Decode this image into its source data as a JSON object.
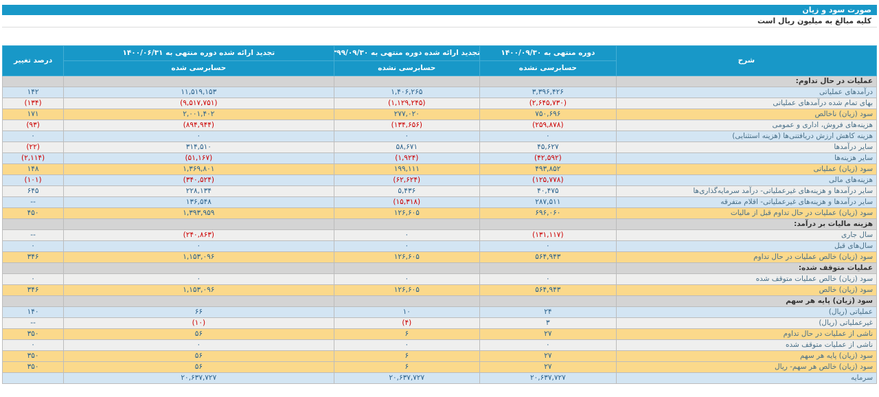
{
  "page": {
    "title": "صورت سود و زیان",
    "subtitle": "کلیه مبالغ به میلیون ریال است"
  },
  "colors": {
    "accent_teal": "#1898c8",
    "row_blue": "#d3e5f3",
    "row_white": "#efefee",
    "row_yellow": "#fbd98b",
    "row_section_grey": "#d4d4d4",
    "negative_red": "#cc0000",
    "value_blue": "#2a618c"
  },
  "table": {
    "headers": {
      "description": "شرح",
      "col_current_line1": "دوره منتهی به ۱۴۰۰/۰۹/۳۰",
      "col_current_line2": "حسابرسی نشده",
      "col_prior_line1": "تجدید ارائه شده دوره منتهی به ۱۳۹۹/۰۹/۳۰",
      "col_prior_line2": "حسابرسی نشده",
      "col_annual_line1": "تجدید ارائه شده دوره منتهی به ۱۴۰۰/۰۶/۳۱",
      "col_annual_line2": "حسابرسی شده",
      "pct_change": "درصد تغییر"
    },
    "rows": [
      {
        "type": "section",
        "bg": "grey",
        "label": "عملیات در حال تداوم:",
        "current": "",
        "prior": "",
        "annual": "",
        "pct": ""
      },
      {
        "type": "data",
        "bg": "blue",
        "label": "درآمدهای عملیاتی",
        "current": "۳,۳۹۶,۴۲۶",
        "prior": "۱,۴۰۶,۲۶۵",
        "annual": "۱۱,۵۱۹,۱۵۳",
        "pct": "۱۴۲"
      },
      {
        "type": "data",
        "bg": "white",
        "label": "بهای تمام شده درآمدهای عملیاتی",
        "current": "(۲,۶۴۵,۷۳۰)",
        "prior": "(۱,۱۲۹,۲۴۵)",
        "annual": "(۹,۵۱۷,۷۵۱)",
        "pct": "(۱۳۴)"
      },
      {
        "type": "data",
        "bg": "yellow",
        "label": "سود (زیان) ناخالص",
        "current": "۷۵۰,۶۹۶",
        "prior": "۲۷۷,۰۲۰",
        "annual": "۲,۰۰۱,۴۰۲",
        "pct": "۱۷۱"
      },
      {
        "type": "data",
        "bg": "white",
        "label": "هزینه‌های فروش، اداری و عمومی",
        "current": "(۲۵۹,۸۷۸)",
        "prior": "(۱۳۴,۶۵۶)",
        "annual": "(۸۹۴,۹۴۴)",
        "pct": "(۹۳)"
      },
      {
        "type": "data",
        "bg": "blue",
        "label": "هزینه کاهش ارزش دریافتنی‌ها (هزینه استثنایی)",
        "current": "۰",
        "prior": "۰",
        "annual": "۰",
        "pct": "۰"
      },
      {
        "type": "data",
        "bg": "white",
        "label": "سایر درآمدها",
        "current": "۴۵,۶۲۷",
        "prior": "۵۸,۶۷۱",
        "annual": "۳۱۴,۵۱۰",
        "pct": "(۲۲)"
      },
      {
        "type": "data",
        "bg": "blue",
        "label": "سایر هزینه‌ها",
        "current": "(۴۲,۵۹۲)",
        "prior": "(۱,۹۲۴)",
        "annual": "(۵۱,۱۶۷)",
        "pct": "(۲,۱۱۴)"
      },
      {
        "type": "data",
        "bg": "yellow",
        "label": "سود (زیان) عملیاتی",
        "current": "۴۹۳,۸۵۲",
        "prior": "۱۹۹,۱۱۱",
        "annual": "۱,۳۶۹,۸۰۱",
        "pct": "۱۴۸"
      },
      {
        "type": "data",
        "bg": "blue",
        "label": "هزینه‌های مالی",
        "current": "(۱۲۵,۷۷۸)",
        "prior": "(۶۲,۶۲۴)",
        "annual": "(۳۴۰,۵۲۴)",
        "pct": "(۱۰۱)"
      },
      {
        "type": "data",
        "bg": "white",
        "label": "سایر درآمدها و هزینه‌های غیرعملیاتی- درآمد سرمایه‌گذاری‌ها",
        "current": "۴۰,۴۷۵",
        "prior": "۵,۴۳۶",
        "annual": "۲۲۸,۱۳۴",
        "pct": "۶۴۵"
      },
      {
        "type": "data",
        "bg": "blue",
        "label": "سایر درآمدها و هزینه‌های غیرعملیاتی- اقلام متفرقه",
        "current": "۲۸۷,۵۱۱",
        "prior": "(۱۵,۳۱۸)",
        "annual": "۱۳۶,۵۴۸",
        "pct": "--"
      },
      {
        "type": "data",
        "bg": "yellow",
        "label": "سود (زیان) عملیات در حال تداوم قبل از مالیات",
        "current": "۶۹۶,۰۶۰",
        "prior": "۱۲۶,۶۰۵",
        "annual": "۱,۳۹۳,۹۵۹",
        "pct": "۴۵۰"
      },
      {
        "type": "section",
        "bg": "grey",
        "label": "هزینه مالیات بر درآمد:",
        "current": "",
        "prior": "",
        "annual": "",
        "pct": ""
      },
      {
        "type": "data",
        "bg": "white",
        "label": "سال جاری",
        "current": "(۱۳۱,۱۱۷)",
        "prior": "۰",
        "annual": "(۲۴۰,۸۶۳)",
        "pct": "--"
      },
      {
        "type": "data",
        "bg": "blue",
        "label": "سال‌های قبل",
        "current": "۰",
        "prior": "۰",
        "annual": "۰",
        "pct": "۰"
      },
      {
        "type": "data",
        "bg": "yellow",
        "label": "سود (زیان) خالص عملیات در حال تداوم",
        "current": "۵۶۴,۹۴۳",
        "prior": "۱۲۶,۶۰۵",
        "annual": "۱,۱۵۳,۰۹۶",
        "pct": "۳۴۶"
      },
      {
        "type": "section",
        "bg": "grey",
        "label": "عملیات متوقف شده:",
        "current": "",
        "prior": "",
        "annual": "",
        "pct": ""
      },
      {
        "type": "data",
        "bg": "white",
        "label": "سود (زیان) خالص عملیات متوقف شده",
        "current": "۰",
        "prior": "۰",
        "annual": "۰",
        "pct": "۰"
      },
      {
        "type": "data",
        "bg": "yellow",
        "label": "سود (زیان) خالص",
        "current": "۵۶۴,۹۴۳",
        "prior": "۱۲۶,۶۰۵",
        "annual": "۱,۱۵۳,۰۹۶",
        "pct": "۳۴۶"
      },
      {
        "type": "section",
        "bg": "grey",
        "label": "سود (زیان) پایه هر سهم",
        "current": "",
        "prior": "",
        "annual": "",
        "pct": ""
      },
      {
        "type": "data",
        "bg": "blue",
        "label": "عملیاتی (ریال)",
        "current": "۲۴",
        "prior": "۱۰",
        "annual": "۶۶",
        "pct": "۱۴۰"
      },
      {
        "type": "data",
        "bg": "white",
        "label": "غیرعملیاتی (ریال)",
        "current": "۳",
        "prior": "(۴)",
        "annual": "(۱۰)",
        "pct": "--"
      },
      {
        "type": "data",
        "bg": "yellow",
        "label": "ناشی از عملیات در حال تداوم",
        "current": "۲۷",
        "prior": "۶",
        "annual": "۵۶",
        "pct": "۳۵۰"
      },
      {
        "type": "data",
        "bg": "white",
        "label": "ناشی از عملیات متوقف شده",
        "current": "۰",
        "prior": "۰",
        "annual": "۰",
        "pct": "۰"
      },
      {
        "type": "data",
        "bg": "yellow",
        "label": "سود (زیان) پایه هر سهم",
        "current": "۲۷",
        "prior": "۶",
        "annual": "۵۶",
        "pct": "۳۵۰"
      },
      {
        "type": "data",
        "bg": "yellow",
        "label": "سود (زیان) خالص هر سهم- ریال",
        "current": "۲۷",
        "prior": "۶",
        "annual": "۵۶",
        "pct": "۳۵۰"
      },
      {
        "type": "data",
        "bg": "blue",
        "label": "سرمایه",
        "current": "۲۰,۶۳۷,۷۲۷",
        "prior": "۲۰,۶۳۷,۷۲۷",
        "annual": "۲۰,۶۳۷,۷۲۷",
        "pct": ""
      }
    ]
  }
}
